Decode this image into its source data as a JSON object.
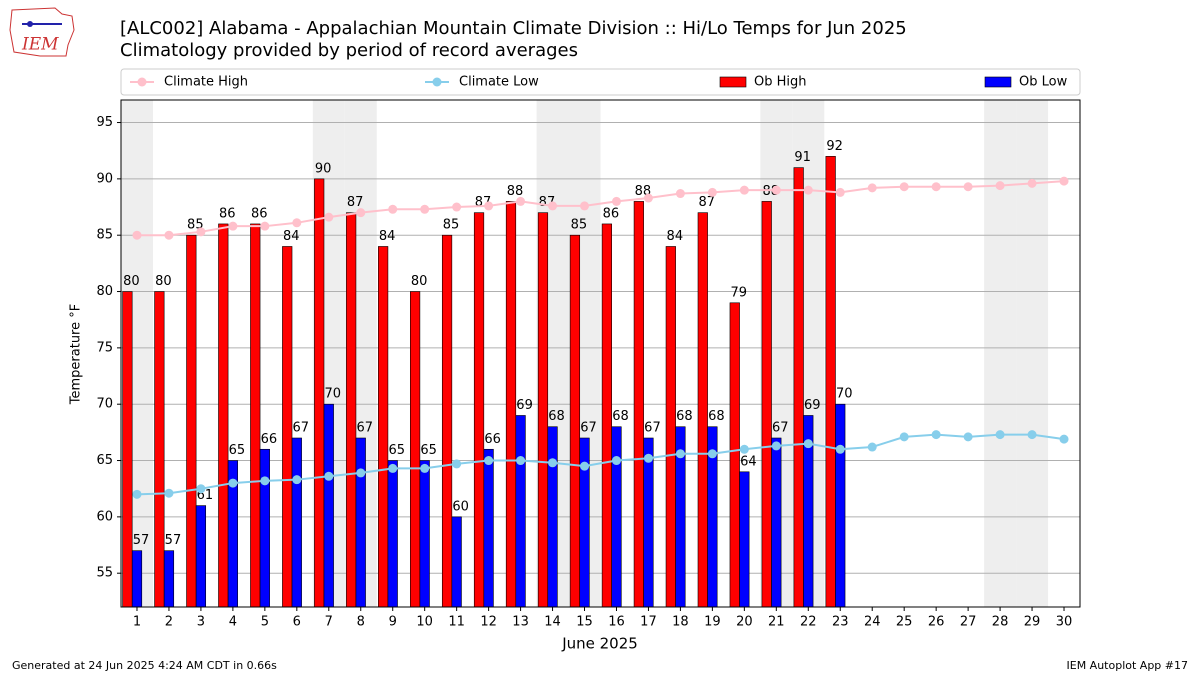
{
  "logo": "IEM",
  "footer_left": "Generated at 24 Jun 2025 4:24 AM CDT in 0.66s",
  "footer_right": "IEM Autoplot App #17",
  "chart_data": {
    "type": "bar",
    "title": "[ALC002] Alabama - Appalachian Mountain Climate Division :: Hi/Lo Temps for Jun 2025",
    "subtitle": "Climatology provided by period of record averages",
    "x_label": "June 2025",
    "y_label": "Temperature °F",
    "categories": [
      "1",
      "2",
      "3",
      "4",
      "5",
      "6",
      "7",
      "8",
      "9",
      "10",
      "11",
      "12",
      "13",
      "14",
      "15",
      "16",
      "17",
      "18",
      "19",
      "20",
      "21",
      "22",
      "23",
      "24",
      "25",
      "26",
      "27",
      "28",
      "29",
      "30"
    ],
    "series": [
      {
        "name": "Climate High",
        "type": "line",
        "color": "#ffc0cb",
        "values": [
          85.0,
          85.0,
          85.3,
          85.8,
          85.8,
          86.1,
          86.6,
          87.0,
          87.3,
          87.3,
          87.5,
          87.6,
          88.0,
          87.6,
          87.6,
          88.0,
          88.3,
          88.7,
          88.8,
          89.0,
          89.0,
          89.0,
          88.8,
          89.2,
          89.3,
          89.3,
          89.3,
          89.4,
          89.6,
          89.8
        ]
      },
      {
        "name": "Climate Low",
        "type": "line",
        "color": "#87ceeb",
        "values": [
          62.0,
          62.1,
          62.5,
          63.0,
          63.2,
          63.3,
          63.6,
          63.9,
          64.3,
          64.3,
          64.7,
          65.0,
          65.0,
          64.8,
          64.5,
          65.0,
          65.2,
          65.6,
          65.6,
          66.0,
          66.3,
          66.5,
          66.0,
          66.2,
          67.1,
          67.3,
          67.1,
          67.3,
          67.3,
          66.9
        ]
      },
      {
        "name": "Ob High",
        "type": "bar",
        "color": "#ff0000",
        "values": [
          80,
          80,
          85,
          86,
          86,
          84,
          90,
          87,
          84,
          80,
          85,
          87,
          88,
          87,
          85,
          86,
          88,
          84,
          87,
          79,
          88,
          91,
          92,
          null,
          null,
          null,
          null,
          null,
          null,
          null
        ]
      },
      {
        "name": "Ob Low",
        "type": "bar",
        "color": "#0000ff",
        "values": [
          57,
          57,
          61,
          65,
          66,
          67,
          70,
          67,
          65,
          65,
          60,
          66,
          69,
          68,
          67,
          68,
          67,
          68,
          68,
          64,
          67,
          69,
          70,
          null,
          null,
          null,
          null,
          null,
          null,
          null
        ]
      }
    ],
    "ylim": [
      52,
      97
    ],
    "yticks": [
      55,
      60,
      65,
      70,
      75,
      80,
      85,
      90,
      95
    ],
    "grid": true
  }
}
